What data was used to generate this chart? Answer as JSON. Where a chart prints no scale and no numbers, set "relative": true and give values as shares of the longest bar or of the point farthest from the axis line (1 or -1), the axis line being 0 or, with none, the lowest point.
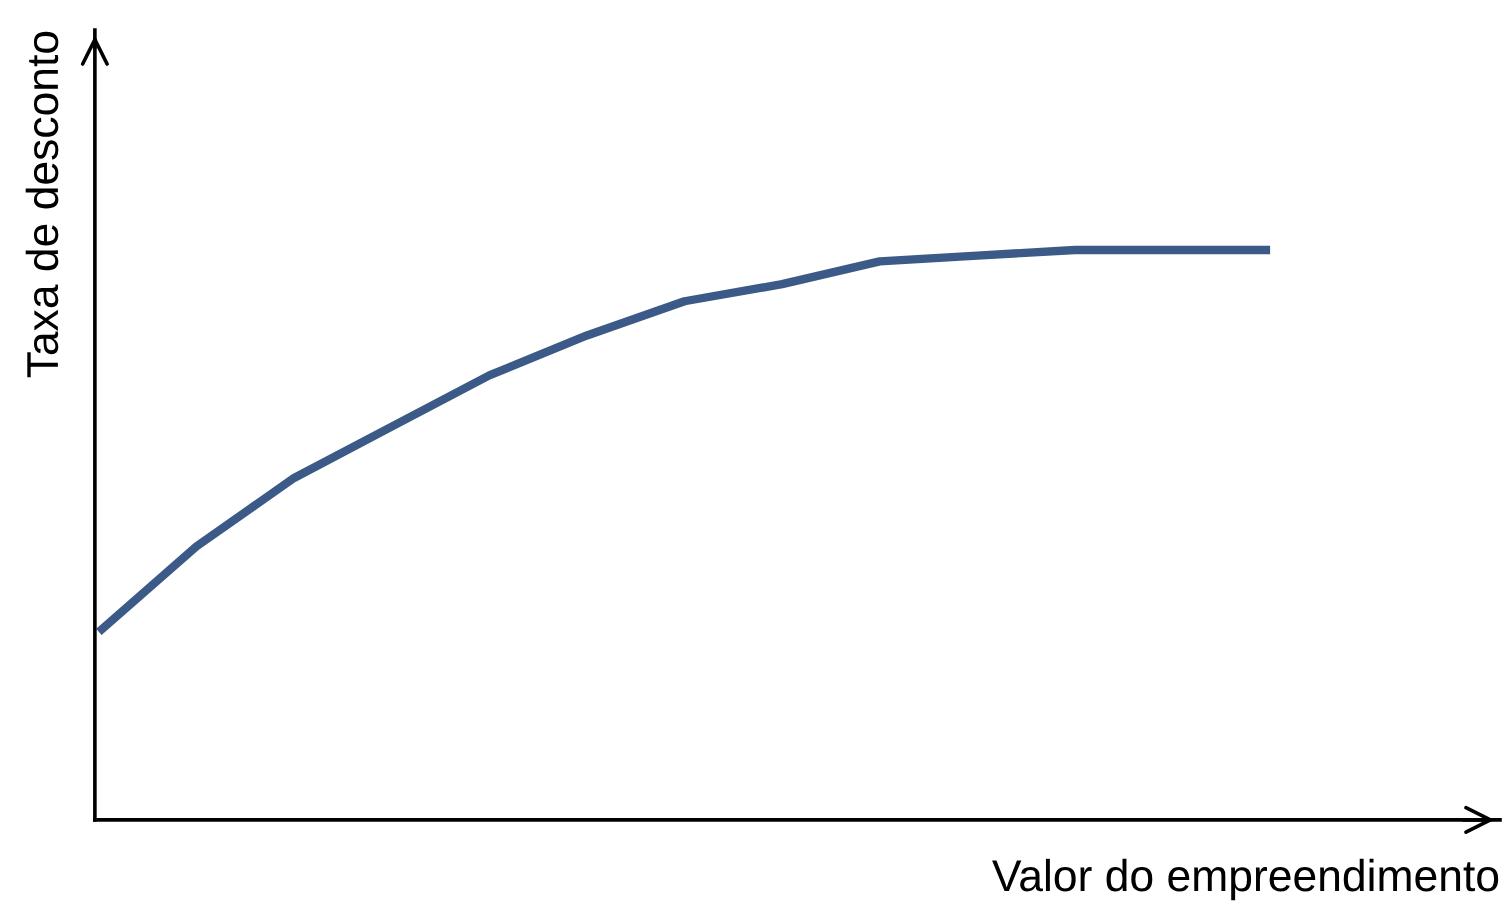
{
  "chart_data": {
    "type": "line",
    "relative": true,
    "xlabel": "Valor do empreendimento",
    "ylabel": "Taxa de desconto",
    "tick_labels": false,
    "legend": false,
    "categories": [
      null,
      null,
      null,
      null,
      null,
      null,
      null,
      null,
      null,
      null,
      null,
      null,
      null
    ],
    "series": [
      {
        "color": "#3c5a87",
        "values": [
          0.33,
          0.48,
          0.6,
          0.69,
          0.78,
          0.85,
          0.91,
          0.94,
          0.98,
          0.99,
          1.0,
          1.0,
          1.0
        ]
      }
    ]
  }
}
